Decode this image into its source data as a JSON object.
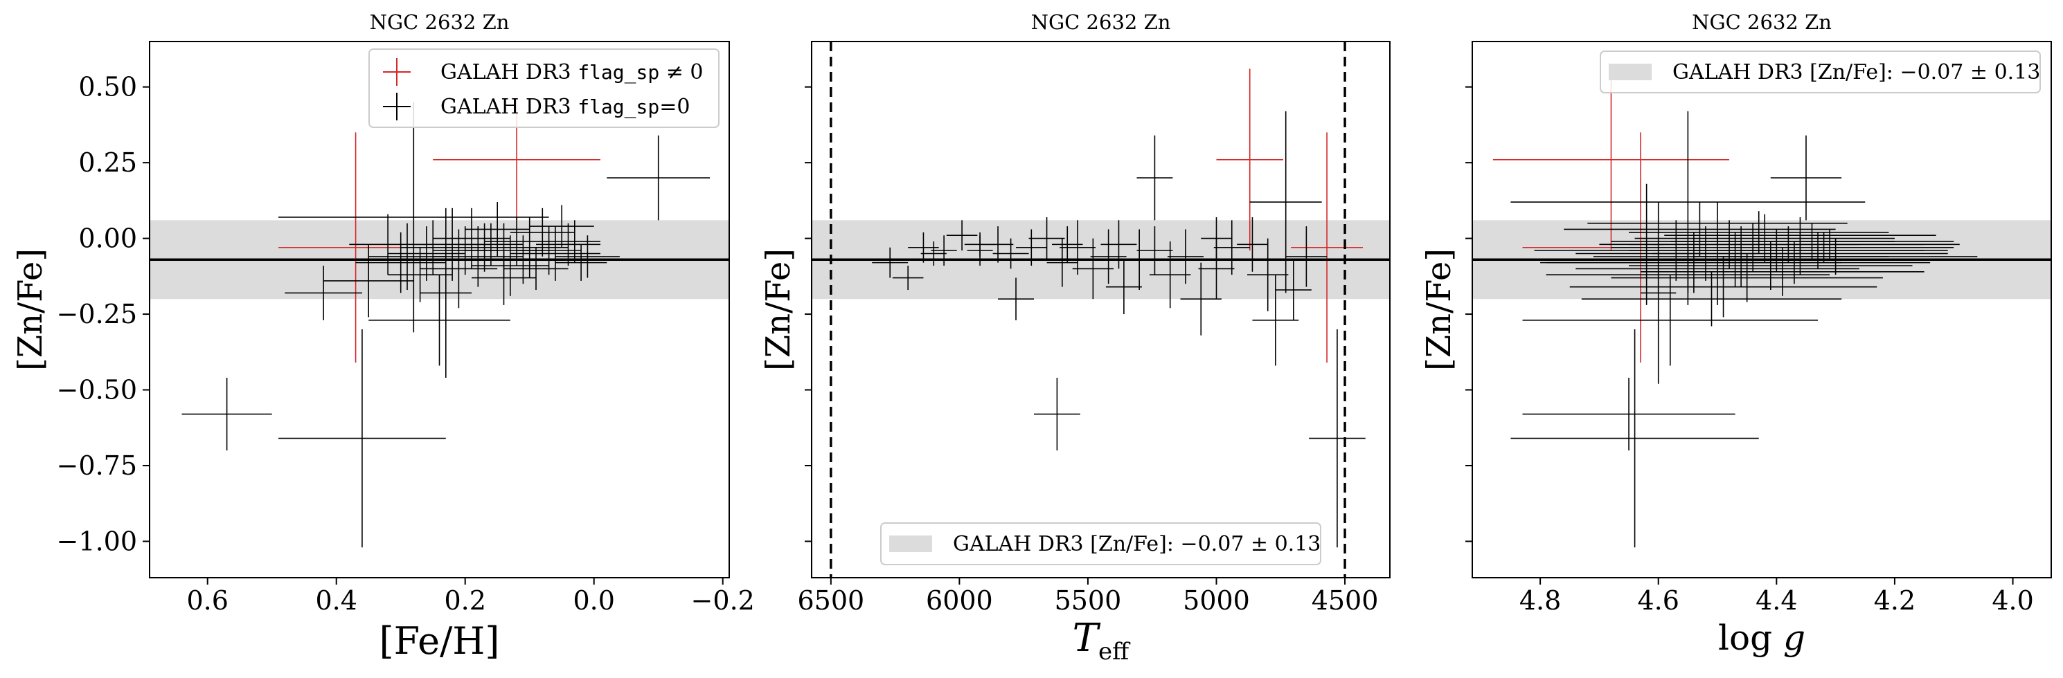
{
  "figure": {
    "background": "#ffffff"
  },
  "style": {
    "flagged_color": "#d62728",
    "ok_color": "#000000",
    "band_color": "#dcdcdc",
    "mean_color": "#000000"
  },
  "y_axis": {
    "label": "[Zn/Fe]",
    "ylim": [
      -1.12,
      0.65
    ],
    "ticks": [
      0.5,
      0.25,
      0.0,
      -0.25,
      -0.5,
      -0.75,
      -1.0
    ],
    "tick_labels": [
      "0.50",
      "0.25",
      "0.00",
      "−0.25",
      "−0.50",
      "−0.75",
      "−1.00"
    ]
  },
  "reference": {
    "mean": -0.07,
    "sigma": 0.13
  },
  "chart_data": [
    {
      "type": "scatter",
      "title": "NGC 2632 Zn",
      "xlabel": "[Fe/H]",
      "xlim": [
        0.69,
        -0.21
      ],
      "xticks": [
        0.6,
        0.4,
        0.2,
        0.0,
        -0.2
      ],
      "xtick_labels": [
        "0.6",
        "0.4",
        "0.2",
        "0.0",
        "−0.2"
      ],
      "legend": {
        "placement": "upper-right",
        "entries": [
          {
            "text_pre": "GALAH DR3 ",
            "text_mono": "flag_sp",
            "text_post": " ≠ 0",
            "style": "flagged"
          },
          {
            "text_pre": "GALAH DR3 ",
            "text_mono": "flag_sp",
            "text_post": "=0",
            "style": "ok"
          }
        ]
      },
      "band_legend": null,
      "vlines": [],
      "points": [
        {
          "x": 0.57,
          "y": -0.58,
          "xerr": 0.07,
          "yerr": 0.12,
          "flag": 0
        },
        {
          "x": 0.36,
          "y": -0.66,
          "xerr": 0.13,
          "yerr": 0.36,
          "flag": 0
        },
        {
          "x": 0.37,
          "y": -0.03,
          "xerr": 0.12,
          "yerr": 0.38,
          "flag": 1
        },
        {
          "x": 0.12,
          "y": 0.26,
          "xerr": 0.13,
          "yerr": 0.2,
          "flag": 1
        },
        {
          "x": -0.1,
          "y": 0.2,
          "xerr": 0.08,
          "yerr": 0.14,
          "flag": 0
        },
        {
          "x": 0.28,
          "y": 0.07,
          "xerr": 0.21,
          "yerr": 0.38,
          "flag": 0
        },
        {
          "x": 0.42,
          "y": -0.18,
          "xerr": 0.06,
          "yerr": 0.09,
          "flag": 0
        },
        {
          "x": 0.35,
          "y": -0.14,
          "xerr": 0.07,
          "yerr": 0.12,
          "flag": 0
        },
        {
          "x": 0.3,
          "y": -0.08,
          "xerr": 0.07,
          "yerr": 0.1,
          "flag": 0
        },
        {
          "x": 0.26,
          "y": -0.05,
          "xerr": 0.06,
          "yerr": 0.09,
          "flag": 0
        },
        {
          "x": 0.24,
          "y": -0.27,
          "xerr": 0.11,
          "yerr": 0.15,
          "flag": 0
        },
        {
          "x": 0.22,
          "y": -0.02,
          "xerr": 0.06,
          "yerr": 0.12,
          "flag": 0
        },
        {
          "x": 0.2,
          "y": -0.04,
          "xerr": 0.05,
          "yerr": 0.08,
          "flag": 0
        },
        {
          "x": 0.18,
          "y": -0.06,
          "xerr": 0.07,
          "yerr": 0.1,
          "flag": 0
        },
        {
          "x": 0.16,
          "y": -0.02,
          "xerr": 0.05,
          "yerr": 0.07,
          "flag": 0
        },
        {
          "x": 0.14,
          "y": -0.04,
          "xerr": 0.06,
          "yerr": 0.09,
          "flag": 0
        },
        {
          "x": 0.12,
          "y": -0.01,
          "xerr": 0.05,
          "yerr": 0.08,
          "flag": 0
        },
        {
          "x": 0.1,
          "y": -0.03,
          "xerr": 0.06,
          "yerr": 0.1,
          "flag": 0
        },
        {
          "x": 0.08,
          "y": 0.02,
          "xerr": 0.05,
          "yerr": 0.08,
          "flag": 0
        },
        {
          "x": 0.06,
          "y": -0.05,
          "xerr": 0.07,
          "yerr": 0.09,
          "flag": 0
        },
        {
          "x": 0.04,
          "y": -0.02,
          "xerr": 0.05,
          "yerr": 0.07,
          "flag": 0
        },
        {
          "x": 0.02,
          "y": -0.08,
          "xerr": 0.04,
          "yerr": 0.06,
          "flag": 0
        },
        {
          "x": 0.21,
          "y": -0.1,
          "xerr": 0.06,
          "yerr": 0.13,
          "flag": 0
        },
        {
          "x": 0.27,
          "y": -0.12,
          "xerr": 0.05,
          "yerr": 0.09,
          "flag": 0
        },
        {
          "x": 0.19,
          "y": 0.0,
          "xerr": 0.06,
          "yerr": 0.1,
          "flag": 0
        },
        {
          "x": 0.15,
          "y": 0.03,
          "xerr": 0.05,
          "yerr": 0.09,
          "flag": 0
        },
        {
          "x": 0.11,
          "y": -0.07,
          "xerr": 0.06,
          "yerr": 0.08,
          "flag": 0
        },
        {
          "x": 0.09,
          "y": -0.1,
          "xerr": 0.05,
          "yerr": 0.07,
          "flag": 0
        },
        {
          "x": 0.23,
          "y": -0.18,
          "xerr": 0.04,
          "yerr": 0.28,
          "flag": 0
        },
        {
          "x": 0.32,
          "y": -0.02,
          "xerr": 0.06,
          "yerr": 0.1,
          "flag": 0
        },
        {
          "x": 0.05,
          "y": 0.04,
          "xerr": 0.05,
          "yerr": 0.07,
          "flag": 0
        },
        {
          "x": 0.13,
          "y": -0.09,
          "xerr": 0.06,
          "yerr": 0.1,
          "flag": 0
        },
        {
          "x": 0.17,
          "y": -0.03,
          "xerr": 0.05,
          "yerr": 0.08,
          "flag": 0
        },
        {
          "x": 0.07,
          "y": -0.04,
          "xerr": 0.05,
          "yerr": 0.08,
          "flag": 0
        },
        {
          "x": 0.01,
          "y": -0.06,
          "xerr": 0.05,
          "yerr": 0.07,
          "flag": 0
        },
        {
          "x": 0.25,
          "y": -0.03,
          "xerr": 0.05,
          "yerr": 0.09,
          "flag": 0
        },
        {
          "x": 0.29,
          "y": -0.06,
          "xerr": 0.06,
          "yerr": 0.11,
          "flag": 0
        },
        {
          "x": 0.03,
          "y": -0.01,
          "xerr": 0.04,
          "yerr": 0.07,
          "flag": 0
        },
        {
          "x": 0.14,
          "y": -0.13,
          "xerr": 0.05,
          "yerr": 0.09,
          "flag": 0
        }
      ]
    },
    {
      "type": "scatter",
      "title": "NGC 2632 Zn",
      "xlabel": "T_eff",
      "xlabel_main": "T",
      "xlabel_sub": "eff",
      "xlim": [
        6575,
        4325
      ],
      "xticks": [
        6500,
        6000,
        5500,
        5000,
        4500
      ],
      "xtick_labels": [
        "6500",
        "6000",
        "5500",
        "5000",
        "4500"
      ],
      "legend": null,
      "band_legend": {
        "placement": "lower-center",
        "text": "GALAH DR3 [Zn/Fe]: −0.07 ± 0.13"
      },
      "vlines": [
        6500,
        4500
      ],
      "points": [
        {
          "x": 5620,
          "y": -0.58,
          "xerr": 90,
          "yerr": 0.12,
          "flag": 0
        },
        {
          "x": 4870,
          "y": 0.26,
          "xerr": 130,
          "yerr": 0.3,
          "flag": 1
        },
        {
          "x": 4570,
          "y": -0.03,
          "xerr": 140,
          "yerr": 0.38,
          "flag": 1
        },
        {
          "x": 4530,
          "y": -0.66,
          "xerr": 110,
          "yerr": 0.36,
          "flag": 0
        },
        {
          "x": 5240,
          "y": 0.2,
          "xerr": 70,
          "yerr": 0.14,
          "flag": 0
        },
        {
          "x": 4730,
          "y": 0.12,
          "xerr": 140,
          "yerr": 0.3,
          "flag": 0
        },
        {
          "x": 6270,
          "y": -0.08,
          "xerr": 70,
          "yerr": 0.05,
          "flag": 0
        },
        {
          "x": 6200,
          "y": -0.13,
          "xerr": 60,
          "yerr": 0.04,
          "flag": 0
        },
        {
          "x": 6140,
          "y": -0.03,
          "xerr": 60,
          "yerr": 0.05,
          "flag": 0
        },
        {
          "x": 6060,
          "y": -0.04,
          "xerr": 50,
          "yerr": 0.05,
          "flag": 0
        },
        {
          "x": 5990,
          "y": 0.01,
          "xerr": 60,
          "yerr": 0.05,
          "flag": 0
        },
        {
          "x": 5920,
          "y": -0.04,
          "xerr": 50,
          "yerr": 0.05,
          "flag": 0
        },
        {
          "x": 5850,
          "y": -0.02,
          "xerr": 60,
          "yerr": 0.06,
          "flag": 0
        },
        {
          "x": 5780,
          "y": -0.2,
          "xerr": 70,
          "yerr": 0.07,
          "flag": 0
        },
        {
          "x": 5720,
          "y": -0.03,
          "xerr": 60,
          "yerr": 0.06,
          "flag": 0
        },
        {
          "x": 5660,
          "y": 0.0,
          "xerr": 70,
          "yerr": 0.07,
          "flag": 0
        },
        {
          "x": 5600,
          "y": -0.08,
          "xerr": 60,
          "yerr": 0.08,
          "flag": 0
        },
        {
          "x": 5540,
          "y": -0.03,
          "xerr": 70,
          "yerr": 0.09,
          "flag": 0
        },
        {
          "x": 5480,
          "y": -0.1,
          "xerr": 80,
          "yerr": 0.1,
          "flag": 0
        },
        {
          "x": 5420,
          "y": -0.06,
          "xerr": 70,
          "yerr": 0.09,
          "flag": 0
        },
        {
          "x": 5360,
          "y": -0.16,
          "xerr": 70,
          "yerr": 0.09,
          "flag": 0
        },
        {
          "x": 5300,
          "y": -0.07,
          "xerr": 70,
          "yerr": 0.1,
          "flag": 0
        },
        {
          "x": 5240,
          "y": -0.04,
          "xerr": 70,
          "yerr": 0.08,
          "flag": 0
        },
        {
          "x": 5180,
          "y": -0.12,
          "xerr": 80,
          "yerr": 0.11,
          "flag": 0
        },
        {
          "x": 5120,
          "y": -0.06,
          "xerr": 70,
          "yerr": 0.09,
          "flag": 0
        },
        {
          "x": 5060,
          "y": -0.2,
          "xerr": 80,
          "yerr": 0.12,
          "flag": 0
        },
        {
          "x": 5000,
          "y": -0.1,
          "xerr": 70,
          "yerr": 0.1,
          "flag": 0
        },
        {
          "x": 4940,
          "y": -0.03,
          "xerr": 70,
          "yerr": 0.09,
          "flag": 0
        },
        {
          "x": 4860,
          "y": -0.02,
          "xerr": 60,
          "yerr": 0.09,
          "flag": 0
        },
        {
          "x": 4800,
          "y": -0.12,
          "xerr": 80,
          "yerr": 0.12,
          "flag": 0
        },
        {
          "x": 4770,
          "y": -0.27,
          "xerr": 90,
          "yerr": 0.15,
          "flag": 0
        },
        {
          "x": 4700,
          "y": -0.17,
          "xerr": 70,
          "yerr": 0.1,
          "flag": 0
        },
        {
          "x": 4650,
          "y": -0.06,
          "xerr": 80,
          "yerr": 0.1,
          "flag": 0
        },
        {
          "x": 5920,
          "y": -0.02,
          "xerr": 60,
          "yerr": 0.04,
          "flag": 0
        },
        {
          "x": 5800,
          "y": -0.05,
          "xerr": 70,
          "yerr": 0.05,
          "flag": 0
        },
        {
          "x": 5580,
          "y": -0.02,
          "xerr": 60,
          "yerr": 0.06,
          "flag": 0
        },
        {
          "x": 5380,
          "y": -0.02,
          "xerr": 70,
          "yerr": 0.08,
          "flag": 0
        },
        {
          "x": 5000,
          "y": 0.0,
          "xerr": 60,
          "yerr": 0.07,
          "flag": 0
        },
        {
          "x": 6100,
          "y": -0.05,
          "xerr": 50,
          "yerr": 0.04,
          "flag": 0
        }
      ]
    },
    {
      "type": "scatter",
      "title": "NGC 2632 Zn",
      "xlabel": "log g",
      "xlabel_main": "log",
      "xlabel_var": "g",
      "xlim": [
        4.915,
        3.935
      ],
      "xticks": [
        4.8,
        4.6,
        4.4,
        4.2,
        4.0
      ],
      "xtick_labels": [
        "4.8",
        "4.6",
        "4.4",
        "4.2",
        "4.0"
      ],
      "legend": null,
      "band_legend": {
        "placement": "upper-right",
        "text": "GALAH DR3 [Zn/Fe]: −0.07 ± 0.13"
      },
      "vlines": [],
      "points": [
        {
          "x": 4.65,
          "y": -0.58,
          "xerr": 0.18,
          "yerr": 0.12,
          "flag": 0
        },
        {
          "x": 4.64,
          "y": -0.66,
          "xerr": 0.21,
          "yerr": 0.36,
          "flag": 0
        },
        {
          "x": 4.68,
          "y": 0.26,
          "xerr": 0.2,
          "yerr": 0.3,
          "flag": 1
        },
        {
          "x": 4.63,
          "y": -0.03,
          "xerr": 0.2,
          "yerr": 0.38,
          "flag": 1
        },
        {
          "x": 4.35,
          "y": 0.2,
          "xerr": 0.06,
          "yerr": 0.14,
          "flag": 0
        },
        {
          "x": 4.55,
          "y": 0.12,
          "xerr": 0.3,
          "yerr": 0.3,
          "flag": 0
        },
        {
          "x": 4.6,
          "y": -0.08,
          "xerr": 0.2,
          "yerr": 0.1,
          "flag": 0
        },
        {
          "x": 4.58,
          "y": -0.27,
          "xerr": 0.25,
          "yerr": 0.15,
          "flag": 0
        },
        {
          "x": 4.55,
          "y": -0.12,
          "xerr": 0.24,
          "yerr": 0.1,
          "flag": 0
        },
        {
          "x": 4.52,
          "y": -0.05,
          "xerr": 0.22,
          "yerr": 0.09,
          "flag": 0
        },
        {
          "x": 4.5,
          "y": -0.1,
          "xerr": 0.24,
          "yerr": 0.12,
          "flag": 0
        },
        {
          "x": 4.48,
          "y": -0.02,
          "xerr": 0.22,
          "yerr": 0.08,
          "flag": 0
        },
        {
          "x": 4.46,
          "y": -0.06,
          "xerr": 0.25,
          "yerr": 0.1,
          "flag": 0
        },
        {
          "x": 4.44,
          "y": -0.03,
          "xerr": 0.24,
          "yerr": 0.08,
          "flag": 0
        },
        {
          "x": 4.42,
          "y": 0.0,
          "xerr": 0.22,
          "yerr": 0.08,
          "flag": 0
        },
        {
          "x": 4.4,
          "y": -0.04,
          "xerr": 0.25,
          "yerr": 0.07,
          "flag": 0
        },
        {
          "x": 4.38,
          "y": -0.02,
          "xerr": 0.23,
          "yerr": 0.06,
          "flag": 0
        },
        {
          "x": 4.36,
          "y": -0.05,
          "xerr": 0.25,
          "yerr": 0.07,
          "flag": 0
        },
        {
          "x": 4.34,
          "y": -0.01,
          "xerr": 0.24,
          "yerr": 0.06,
          "flag": 0
        },
        {
          "x": 4.32,
          "y": -0.03,
          "xerr": 0.22,
          "yerr": 0.05,
          "flag": 0
        },
        {
          "x": 4.3,
          "y": -0.06,
          "xerr": 0.24,
          "yerr": 0.06,
          "flag": 0
        },
        {
          "x": 4.45,
          "y": -0.13,
          "xerr": 0.23,
          "yerr": 0.08,
          "flag": 0
        },
        {
          "x": 4.49,
          "y": -0.16,
          "xerr": 0.26,
          "yerr": 0.1,
          "flag": 0
        },
        {
          "x": 4.41,
          "y": -0.09,
          "xerr": 0.24,
          "yerr": 0.08,
          "flag": 0
        },
        {
          "x": 4.37,
          "y": -0.08,
          "xerr": 0.23,
          "yerr": 0.07,
          "flag": 0
        },
        {
          "x": 4.53,
          "y": 0.03,
          "xerr": 0.23,
          "yerr": 0.09,
          "flag": 0
        },
        {
          "x": 4.43,
          "y": 0.02,
          "xerr": 0.22,
          "yerr": 0.07,
          "flag": 0
        },
        {
          "x": 4.47,
          "y": -0.07,
          "xerr": 0.25,
          "yerr": 0.09,
          "flag": 0
        },
        {
          "x": 4.39,
          "y": -0.11,
          "xerr": 0.24,
          "yerr": 0.08,
          "flag": 0
        },
        {
          "x": 4.33,
          "y": -0.04,
          "xerr": 0.22,
          "yerr": 0.06,
          "flag": 0
        },
        {
          "x": 4.51,
          "y": -0.2,
          "xerr": 0.22,
          "yerr": 0.09,
          "flag": 0
        },
        {
          "x": 4.57,
          "y": -0.04,
          "xerr": 0.24,
          "yerr": 0.1,
          "flag": 0
        },
        {
          "x": 4.6,
          "y": -0.18,
          "xerr": 0.03,
          "yerr": 0.3,
          "flag": 0
        },
        {
          "x": 4.62,
          "y": -0.02,
          "xerr": 0.03,
          "yerr": 0.2,
          "flag": 0
        },
        {
          "x": 4.44,
          "y": -0.01,
          "xerr": 0.24,
          "yerr": 0.06,
          "flag": 0
        },
        {
          "x": 4.36,
          "y": 0.01,
          "xerr": 0.23,
          "yerr": 0.06,
          "flag": 0
        },
        {
          "x": 4.31,
          "y": -0.02,
          "xerr": 0.22,
          "yerr": 0.05,
          "flag": 0
        },
        {
          "x": 4.54,
          "y": -0.08,
          "xerr": 0.25,
          "yerr": 0.1,
          "flag": 0
        },
        {
          "x": 4.5,
          "y": 0.05,
          "xerr": 0.22,
          "yerr": 0.07,
          "flag": 0
        }
      ]
    }
  ]
}
